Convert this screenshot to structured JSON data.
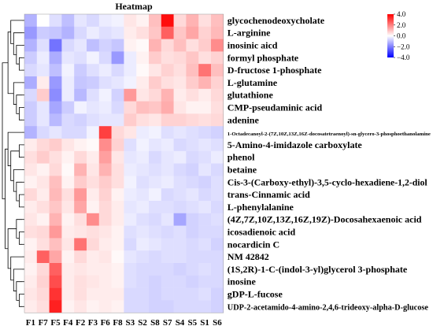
{
  "chart_data": {
    "type": "heatmap",
    "title": "Heatmap",
    "columns": [
      "F1",
      "F7",
      "F5",
      "F4",
      "F2",
      "F3",
      "F6",
      "F8",
      "S3",
      "S2",
      "S8",
      "S7",
      "S4",
      "S5",
      "S1",
      "S6"
    ],
    "rows": [
      "glycochenodeoxycholate",
      "L-arginine",
      "inosinic aicd",
      "formyl phosphate",
      "D-fructose 1-phosphate",
      "L-glutamine",
      "glutathione",
      "CMP-pseudaminic acid",
      "adenine",
      "1-Octadecanoyl-2-(7Z,10Z,13Z,16Z-docosatetraenoyl)-sn-glycero-3-phosphoethanolamine",
      "5-Amino-4-imidazole carboxylate",
      "phenol",
      "betaine",
      "Cis-3-(Carboxy-ethyl)-3,5-cyclo-hexadiene-1,2-diol",
      "trans-Cinnamic acid",
      "L-phenylalanine",
      "(4Z,7Z,10Z,13Z,16Z,19Z)-Docosahexaenoic acid",
      "icosadienoic acid",
      "nocardicin C",
      "NM 42842",
      "(1S,2R)-1-C-(indol-3-yl)glycerol 3-phosphate",
      "inosine",
      "gDP-L-fucose",
      "UDP-2-acetamido-4-amino-2,4,6-trideoxy-alpha-D-glucose"
    ],
    "values": [
      [
        -1.2,
        0.0,
        -0.5,
        -1.0,
        -0.4,
        -0.6,
        -0.3,
        -0.2,
        0.4,
        0.2,
        1.0,
        3.8,
        0.6,
        1.2,
        0.5,
        1.0
      ],
      [
        -1.6,
        -0.8,
        -0.9,
        -1.2,
        -0.6,
        -0.3,
        -0.5,
        -0.4,
        0.3,
        0.5,
        0.9,
        2.5,
        0.9,
        1.4,
        0.7,
        1.1
      ],
      [
        -1.2,
        -0.5,
        -2.2,
        -0.6,
        -0.4,
        -1.0,
        -0.7,
        -0.9,
        0.2,
        0.1,
        1.2,
        0.6,
        1.0,
        0.5,
        0.8,
        1.8
      ],
      [
        -0.8,
        -0.3,
        -1.3,
        -0.4,
        -0.5,
        -0.2,
        -0.6,
        -1.6,
        -0.3,
        0.2,
        0.8,
        0.5,
        0.6,
        0.9,
        0.5,
        0.7
      ],
      [
        -0.6,
        -0.4,
        -1.0,
        -0.2,
        -0.8,
        -0.5,
        -0.3,
        -0.6,
        -0.3,
        0.1,
        0.4,
        0.7,
        0.5,
        1.0,
        2.2,
        1.0
      ],
      [
        -1.3,
        0.3,
        -1.6,
        -0.3,
        -0.9,
        -0.8,
        -0.5,
        -0.4,
        -0.2,
        0.3,
        0.8,
        0.5,
        0.4,
        0.8,
        1.2,
        0.7
      ],
      [
        -0.6,
        0.8,
        -1.8,
        -0.3,
        -1.1,
        -0.5,
        -0.2,
        -0.7,
        1.6,
        0.4,
        0.6,
        1.2,
        0.3,
        0.5,
        0.3,
        0.6
      ],
      [
        -0.8,
        -0.4,
        -1.4,
        -0.8,
        -0.2,
        -0.4,
        -0.3,
        -0.6,
        0.6,
        1.0,
        0.9,
        1.3,
        0.4,
        0.2,
        0.2,
        0.5
      ],
      [
        -0.8,
        -0.4,
        -1.1,
        -0.6,
        -0.7,
        -0.5,
        -0.4,
        -0.4,
        0.8,
        0.5,
        0.4,
        0.7,
        0.7,
        0.6,
        0.5,
        0.6
      ],
      [
        -1.2,
        -0.6,
        -0.4,
        -0.6,
        -0.6,
        -0.2,
        3.0,
        0.6,
        0.4,
        -0.3,
        -0.2,
        -0.5,
        -0.4,
        -0.5,
        -0.6,
        -0.7
      ],
      [
        0.3,
        0.6,
        0.8,
        0.4,
        0.2,
        0.1,
        1.8,
        0.7,
        -0.5,
        -0.2,
        -0.4,
        -0.3,
        -0.6,
        -0.5,
        -0.4,
        -0.5
      ],
      [
        0.5,
        0.8,
        0.5,
        0.2,
        0.6,
        0.3,
        1.5,
        0.4,
        -0.4,
        -0.3,
        -0.6,
        -0.4,
        -0.3,
        -0.6,
        -0.5,
        -0.3
      ],
      [
        0.4,
        0.2,
        0.6,
        0.1,
        1.2,
        0.4,
        1.2,
        0.5,
        -0.3,
        -0.4,
        -0.5,
        -0.4,
        -0.6,
        -0.7,
        -0.4,
        -0.6
      ],
      [
        0.2,
        0.4,
        1.0,
        0.2,
        0.8,
        0.5,
        0.8,
        0.5,
        -0.2,
        -0.5,
        -0.4,
        -0.3,
        -0.5,
        -0.6,
        -0.7,
        -0.5
      ],
      [
        0.6,
        0.3,
        1.1,
        0.5,
        1.6,
        0.3,
        0.7,
        0.2,
        -0.3,
        -0.4,
        -0.2,
        -0.6,
        -0.5,
        -0.4,
        -0.6,
        -0.5
      ],
      [
        0.3,
        0.5,
        0.9,
        0.4,
        1.4,
        0.2,
        0.6,
        0.3,
        -0.4,
        -0.3,
        -0.5,
        -0.5,
        -0.6,
        -0.5,
        -0.4,
        -0.6
      ],
      [
        0.4,
        0.2,
        1.2,
        0.2,
        0.5,
        1.8,
        0.6,
        0.3,
        -0.3,
        -0.5,
        -0.6,
        -0.4,
        -1.4,
        -0.7,
        -0.6,
        -0.5
      ],
      [
        0.5,
        0.6,
        1.6,
        0.3,
        0.4,
        0.5,
        0.4,
        0.2,
        -0.5,
        -0.4,
        -0.5,
        -0.6,
        -0.5,
        -0.7,
        -0.6,
        -0.6
      ],
      [
        0.2,
        0.5,
        1.0,
        0.4,
        2.2,
        0.6,
        0.3,
        0.2,
        -0.6,
        -0.3,
        -0.4,
        -0.5,
        -0.5,
        -0.6,
        -0.5,
        -0.7
      ],
      [
        0.3,
        2.5,
        1.4,
        0.2,
        0.6,
        0.3,
        0.4,
        0.1,
        -0.4,
        -0.5,
        -0.6,
        -0.5,
        -0.5,
        -0.6,
        -0.6,
        -0.6
      ],
      [
        0.2,
        0.6,
        2.5,
        0.3,
        0.4,
        0.3,
        0.3,
        0.2,
        -0.5,
        -0.6,
        -0.6,
        -0.6,
        -0.7,
        -0.6,
        -0.5,
        -0.6
      ],
      [
        0.3,
        0.7,
        2.8,
        0.3,
        0.5,
        0.4,
        0.3,
        0.2,
        -0.5,
        -0.6,
        -0.7,
        -0.6,
        -0.6,
        -0.7,
        -0.6,
        -0.6
      ],
      [
        0.4,
        0.6,
        3.2,
        0.3,
        0.5,
        0.3,
        0.3,
        0.3,
        -0.6,
        -0.6,
        -0.7,
        -0.6,
        -0.6,
        -0.6,
        -0.5,
        -0.7
      ],
      [
        0.3,
        0.5,
        3.5,
        0.2,
        0.4,
        0.2,
        0.3,
        0.2,
        -0.6,
        -0.6,
        -0.7,
        -0.7,
        -0.6,
        -0.6,
        -0.6,
        -0.7
      ]
    ],
    "colorscale": {
      "low": "#0000ff",
      "mid": "#ffffff",
      "high": "#ff0000",
      "range": [
        -4,
        4
      ],
      "ticks": [
        "4.0",
        "2.0",
        "0.0",
        "−2.0",
        "−4.0"
      ]
    },
    "legend_position": "top-right",
    "dendrogram": "rows, left side"
  }
}
